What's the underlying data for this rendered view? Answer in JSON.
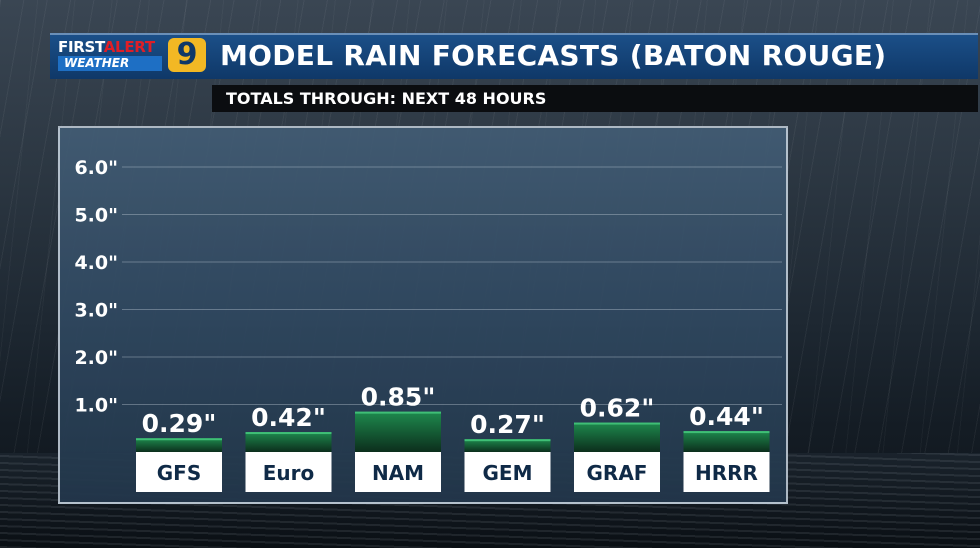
{
  "header": {
    "logo_first": "FIRST",
    "logo_alert": "ALERT",
    "logo_weather": "WEATHER",
    "logo_channel": "9",
    "title": "MODEL RAIN FORECASTS (BATON ROUGE)",
    "subtitle": "TOTALS THROUGH: NEXT 48 HOURS"
  },
  "colors": {
    "bar_top": "#1e8a4e",
    "bar_bottom": "#0c2e1c",
    "label_box": "#ffffff",
    "title_bar": "#154a82"
  },
  "chart_data": {
    "type": "bar",
    "categories": [
      "GFS",
      "Euro",
      "NAM",
      "GEM",
      "GRAF",
      "HRRR"
    ],
    "values": [
      0.29,
      0.42,
      0.85,
      0.27,
      0.62,
      0.44
    ],
    "value_labels": [
      "0.29\"",
      "0.42\"",
      "0.85\"",
      "0.27\"",
      "0.62\"",
      "0.44\""
    ],
    "ylim": [
      0,
      6
    ],
    "yticks": [
      1,
      2,
      3,
      4,
      5,
      6
    ],
    "ytick_labels": [
      "1.0\"",
      "2.0\"",
      "3.0\"",
      "4.0\"",
      "5.0\"",
      "6.0\""
    ],
    "title": "MODEL RAIN FORECASTS (BATON ROUGE)",
    "grid": true
  }
}
